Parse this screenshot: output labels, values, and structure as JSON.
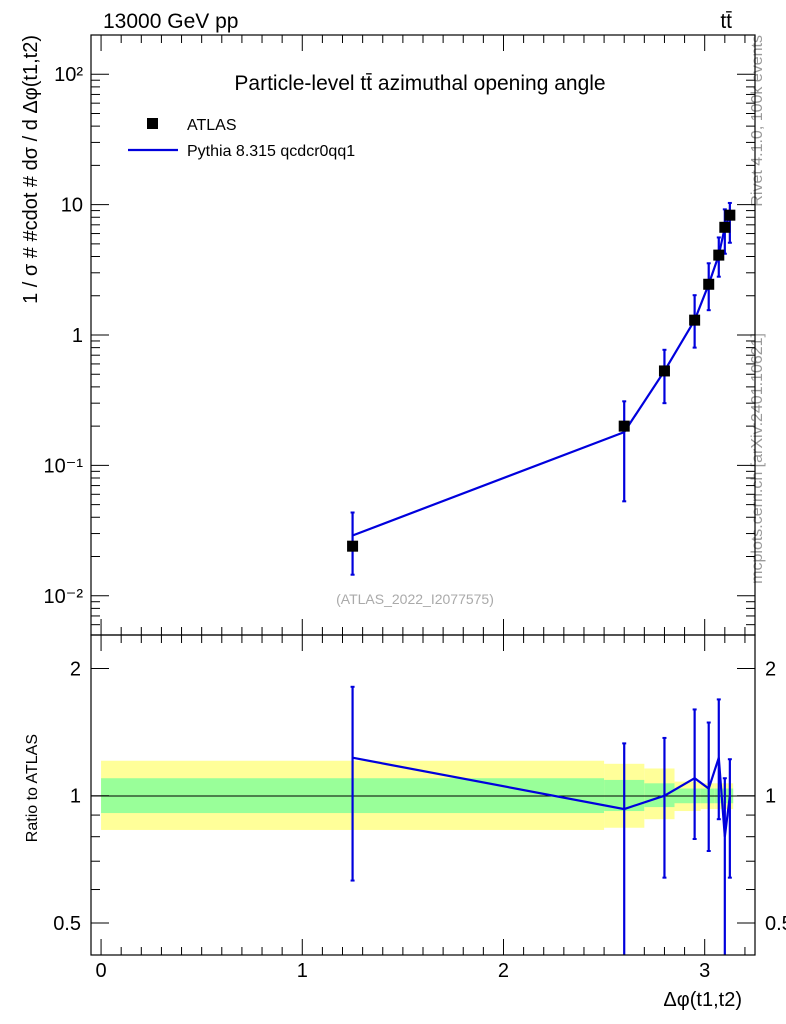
{
  "header": {
    "energy_label": "13000 GeV pp",
    "process_label": "tt̄"
  },
  "side": {
    "rivet_label": "Rivet 4.1.0,  100k events",
    "mcplots_label": "mcplots.cern.ch [arXiv:2401.10621]"
  },
  "chart_data": [
    {
      "type": "scatter",
      "panel": "main",
      "title": "Particle-level tt̄ azimuthal opening angle",
      "ylabel": "1 / σ # #cdot # dσ / d Δφ(t1,t2)",
      "xlabel": "",
      "yscale": "log",
      "ylim": [
        0.005,
        200
      ],
      "xlim": [
        -0.05,
        3.25
      ],
      "yticks": [
        {
          "value": 0.01,
          "label": "10⁻²"
        },
        {
          "value": 0.1,
          "label": "10⁻¹"
        },
        {
          "value": 1,
          "label": "1"
        },
        {
          "value": 10,
          "label": "10"
        },
        {
          "value": 100,
          "label": "10²"
        }
      ],
      "legend_position": "top-left",
      "watermark": "(ATLAS_2022_I2077575)",
      "series": [
        {
          "name": "ATLAS",
          "style": "markers",
          "color": "#000000",
          "x": [
            1.25,
            2.6,
            2.8,
            2.95,
            3.02,
            3.07,
            3.1,
            3.125
          ],
          "y": [
            0.024,
            0.2,
            0.53,
            1.3,
            2.45,
            4.1,
            6.7,
            8.3
          ],
          "err_lo": [
            0.0095,
            0.147,
            0.23,
            0.5,
            0.9,
            1.3,
            2.5,
            3.2
          ],
          "err_hi": [
            0.0195,
            0.11,
            0.24,
            0.72,
            1.1,
            1.5,
            2.5,
            2.0
          ]
        },
        {
          "name": "Pythia 8.315 qcdcr0qq1",
          "style": "line",
          "color": "#0000dd",
          "x": [
            1.25,
            2.6,
            2.8,
            2.95,
            3.02,
            3.07,
            3.1,
            3.125
          ],
          "y": [
            0.029,
            0.18,
            0.53,
            1.3,
            2.45,
            4.1,
            6.7,
            8.3
          ]
        }
      ]
    },
    {
      "type": "line",
      "panel": "ratio",
      "ylabel": "Ratio to ATLAS",
      "xlabel": "Δφ(t1,t2)",
      "yscale": "log",
      "ylim": [
        0.42,
        2.4
      ],
      "xlim": [
        -0.05,
        3.25
      ],
      "xticks": [
        {
          "value": 0,
          "label": "0"
        },
        {
          "value": 1,
          "label": "1"
        },
        {
          "value": 2,
          "label": "2"
        },
        {
          "value": 3,
          "label": "3"
        }
      ],
      "yticks": [
        {
          "value": 0.5,
          "label": "0.5"
        },
        {
          "value": 1,
          "label": "1"
        },
        {
          "value": 2,
          "label": "2"
        }
      ],
      "bands": {
        "bin_edges": [
          0.0,
          2.5,
          2.7,
          2.85,
          2.98,
          3.05,
          3.08,
          3.12,
          3.14159
        ],
        "yellow_lo": [
          0.83,
          0.84,
          0.88,
          0.92,
          0.93,
          0.93,
          0.93,
          0.93
        ],
        "yellow_hi": [
          1.21,
          1.19,
          1.16,
          1.08,
          1.07,
          1.07,
          1.07,
          1.07
        ],
        "green_lo": [
          0.91,
          0.92,
          0.94,
          0.96,
          0.96,
          0.96,
          0.96,
          0.96
        ],
        "green_hi": [
          1.1,
          1.09,
          1.07,
          1.04,
          1.04,
          1.04,
          1.04,
          1.04
        ]
      },
      "series": [
        {
          "name": "Pythia 8.315 qcdcr0qq1",
          "color": "#0000dd",
          "x": [
            1.25,
            2.6,
            2.8,
            2.95,
            3.02,
            3.07,
            3.1,
            3.125
          ],
          "y": [
            1.23,
            0.93,
            1.0,
            1.1,
            1.04,
            1.23,
            0.8,
            1.0
          ],
          "err_lo": [
            0.6,
            0.6,
            0.36,
            0.31,
            0.3,
            0.35,
            0.38,
            0.36
          ],
          "err_hi": [
            0.58,
            0.4,
            0.37,
            0.5,
            0.45,
            0.46,
            0.3,
            0.22
          ]
        }
      ]
    }
  ]
}
